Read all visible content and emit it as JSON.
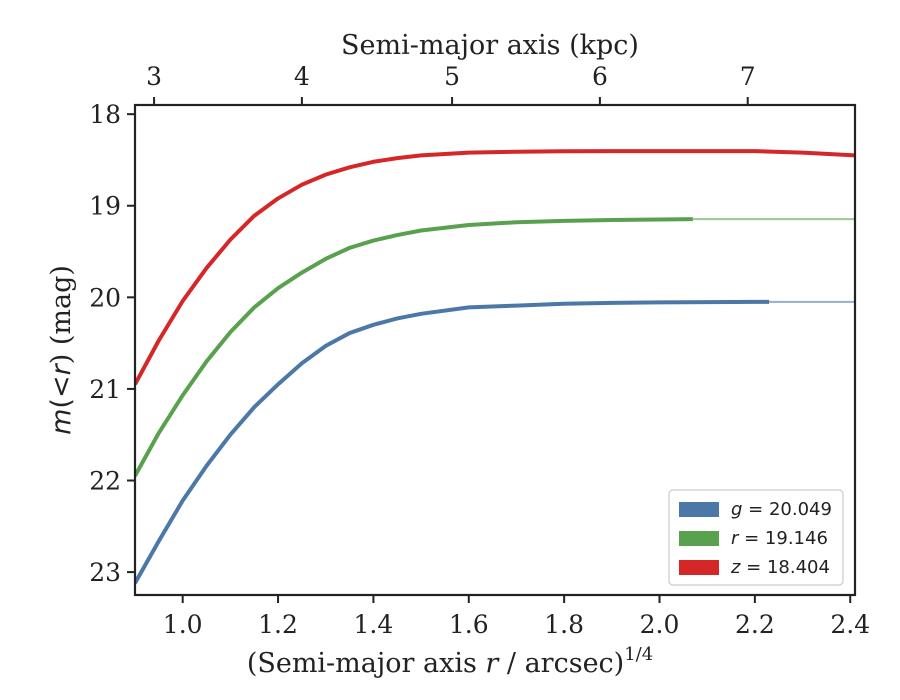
{
  "chart_data": {
    "type": "line",
    "xlabel_prefix": "(Semi-major axis ",
    "xlabel_var": "r",
    "xlabel_suffix": " / arcsec)",
    "xlabel_exp": "1/4",
    "ylabel_var1": "m",
    "ylabel_mid": "(<",
    "ylabel_var2": "r",
    "ylabel_end": ") (mag)",
    "top_xlabel": "Semi-major axis (kpc)",
    "xlim": [
      0.9,
      2.41
    ],
    "ylim": [
      23.25,
      17.9
    ],
    "y_inverted": true,
    "x_ticks": [
      1.0,
      1.2,
      1.4,
      1.6,
      1.8,
      2.0,
      2.2,
      2.4
    ],
    "x_tick_labels": [
      "1.0",
      "1.2",
      "1.4",
      "1.6",
      "1.8",
      "2.0",
      "2.2",
      "2.4"
    ],
    "y_ticks": [
      18,
      19,
      20,
      21,
      22,
      23
    ],
    "y_tick_labels": [
      "18",
      "19",
      "20",
      "21",
      "22",
      "23"
    ],
    "top_ticks_kpc": [
      3,
      4,
      5,
      6,
      7
    ],
    "top_tick_labels": [
      "3",
      "4",
      "5",
      "6",
      "7"
    ],
    "top_tick_positions_x": [
      0.94,
      1.25,
      1.565,
      1.875,
      2.185
    ],
    "legend_position": "lower-right",
    "series": [
      {
        "name": "g",
        "legend_value": "= 20.049",
        "color": "#4c78a8",
        "x": [
          0.9,
          0.95,
          1.0,
          1.05,
          1.1,
          1.15,
          1.2,
          1.25,
          1.3,
          1.35,
          1.4,
          1.45,
          1.5,
          1.6,
          1.7,
          1.8,
          1.9,
          2.0,
          2.1,
          2.2,
          2.23
        ],
        "y": [
          23.12,
          22.66,
          22.22,
          21.84,
          21.5,
          21.2,
          20.95,
          20.72,
          20.53,
          20.39,
          20.3,
          20.23,
          20.18,
          20.11,
          20.09,
          20.07,
          20.06,
          20.055,
          20.052,
          20.05,
          20.049
        ],
        "extension_x": [
          2.23,
          2.41
        ],
        "extension_y": [
          20.049,
          20.049
        ]
      },
      {
        "name": "r",
        "legend_value": "= 19.146",
        "color": "#59a14f",
        "x": [
          0.9,
          0.95,
          1.0,
          1.05,
          1.1,
          1.15,
          1.2,
          1.25,
          1.3,
          1.35,
          1.4,
          1.45,
          1.5,
          1.6,
          1.7,
          1.8,
          1.9,
          2.0,
          2.07
        ],
        "y": [
          21.95,
          21.48,
          21.07,
          20.7,
          20.38,
          20.11,
          19.9,
          19.73,
          19.58,
          19.46,
          19.38,
          19.32,
          19.27,
          19.21,
          19.18,
          19.165,
          19.155,
          19.15,
          19.146
        ],
        "extension_x": [
          2.07,
          2.41
        ],
        "extension_y": [
          19.146,
          19.146
        ]
      },
      {
        "name": "z",
        "legend_value": "= 18.404",
        "color": "#d62728",
        "x": [
          0.9,
          0.95,
          1.0,
          1.05,
          1.1,
          1.15,
          1.2,
          1.25,
          1.3,
          1.35,
          1.4,
          1.45,
          1.5,
          1.6,
          1.7,
          1.8,
          1.9,
          2.0,
          2.1,
          2.2,
          2.3,
          2.41
        ],
        "y": [
          20.95,
          20.47,
          20.04,
          19.68,
          19.37,
          19.11,
          18.92,
          18.77,
          18.66,
          18.58,
          18.52,
          18.48,
          18.45,
          18.42,
          18.41,
          18.405,
          18.404,
          18.404,
          18.404,
          18.404,
          18.42,
          18.45
        ]
      }
    ]
  }
}
